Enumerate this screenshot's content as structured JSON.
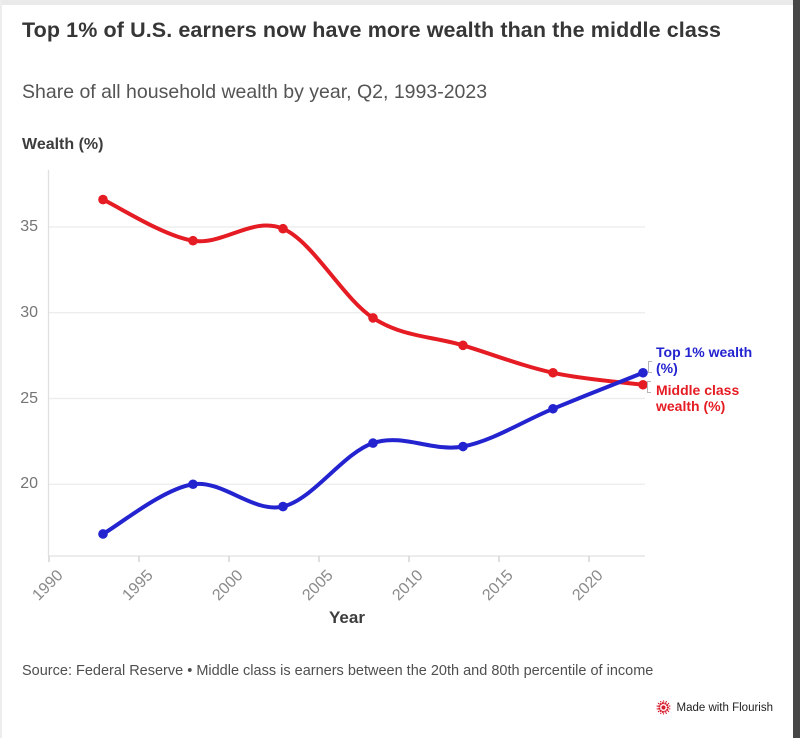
{
  "header": {
    "title": "Top 1% of U.S. earners now have more wealth than the middle class",
    "subtitle": "Share of all household wealth by year, Q2, 1993-2023"
  },
  "chart_data": {
    "type": "line",
    "title": "Top 1% of U.S. earners now have more wealth than the middle class",
    "subtitle": "Share of all household wealth by year, Q2, 1993-2023",
    "x": [
      1993,
      1998,
      2003,
      2008,
      2013,
      2018,
      2023
    ],
    "series": [
      {
        "name": "Middle class wealth (%)",
        "color": "#e51c23",
        "values": [
          36.6,
          34.2,
          34.9,
          29.7,
          28.1,
          26.5,
          25.8
        ]
      },
      {
        "name": "Top 1% wealth (%)",
        "color": "#2323d0",
        "values": [
          17.1,
          20.0,
          18.7,
          22.4,
          22.2,
          24.4,
          26.5
        ]
      }
    ],
    "ylabel": "Wealth (%)",
    "xlabel": "Year",
    "yticks": [
      35,
      30,
      25,
      20
    ],
    "xticks": [
      1990,
      1995,
      2000,
      2005,
      2010,
      2015,
      2020
    ],
    "xlim": [
      1990,
      2023.2
    ],
    "ylim": [
      15.8,
      38.3
    ],
    "grid": "horizontal",
    "legend_position": "end-of-line-labels-right"
  },
  "labels": {
    "top1_end_label": "Top 1% wealth (%)",
    "middle_end_label": "Middle class wealth (%)"
  },
  "footer": {
    "source": "Source: Federal Reserve • Middle class is earners between the 20th and 80th percentile of income",
    "badge": "Made with Flourish"
  },
  "colors": {
    "top1_blue": "#2323d0",
    "middle_red": "#e51c23",
    "grid": "#ececec",
    "axis": "#e0e0e0"
  }
}
